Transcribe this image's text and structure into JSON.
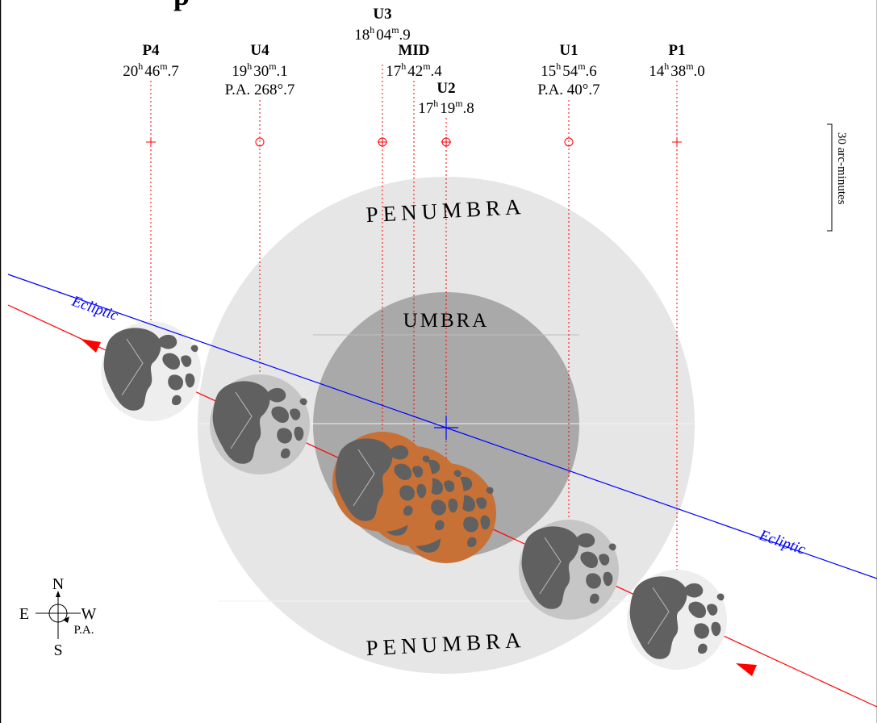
{
  "title_fragment": "p",
  "shadow_labels": {
    "penumbra_top": "PENUMBRA",
    "penumbra_bottom": "PENUMBRA",
    "umbra": "UMBRA"
  },
  "ecliptic_label": "Ecliptic",
  "scale_bar_label": "30 arc-minutes",
  "compass": {
    "north": "N",
    "south": "S",
    "east": "E",
    "west": "W",
    "pa": "P.A."
  },
  "contacts": {
    "p4": {
      "name": "P4",
      "hours": "20",
      "h_sup": "h",
      "mins": "46",
      "m_sup": "m",
      "frac": ".7",
      "pa": ""
    },
    "u4": {
      "name": "U4",
      "hours": "19",
      "h_sup": "h",
      "mins": "30",
      "m_sup": "m",
      "frac": ".1",
      "pa": "P.A. 268°.7"
    },
    "u3": {
      "name": "U3",
      "hours": "18",
      "h_sup": "h",
      "mins": "04",
      "m_sup": "m",
      "frac": ".9",
      "pa": ""
    },
    "mid": {
      "name": "MID",
      "hours": "17",
      "h_sup": "h",
      "mins": "42",
      "m_sup": "m",
      "frac": ".4",
      "pa": ""
    },
    "u2": {
      "name": "U2",
      "hours": "17",
      "h_sup": "h",
      "mins": "19",
      "m_sup": "m",
      "frac": ".8",
      "pa": ""
    },
    "u1": {
      "name": "U1",
      "hours": "15",
      "h_sup": "h",
      "mins": "54",
      "m_sup": "m",
      "frac": ".6",
      "pa": "P.A. 40°.7"
    },
    "p1": {
      "name": "P1",
      "hours": "14",
      "h_sup": "h",
      "mins": "38",
      "m_sup": "m",
      "frac": ".0",
      "pa": ""
    }
  },
  "colors": {
    "penumbra": "#e6e6e6",
    "umbra": "#a9a9a9",
    "ecliptic": "#0000ff",
    "moon_path": "#ff0000",
    "eclipsed_moon": "#c87137",
    "moon_bright": "#eeeeee",
    "moon_penumbral": "#c6c6c6",
    "maria": "#606060"
  }
}
